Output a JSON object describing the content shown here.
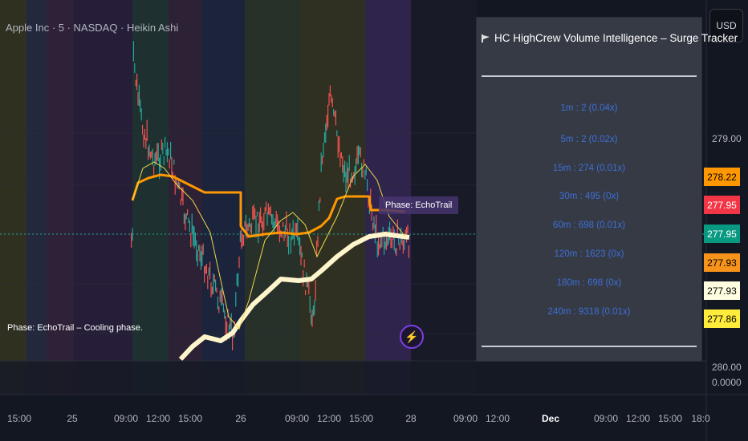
{
  "header": {
    "title": "Apple Inc · 5 · NASDAQ · Heikin Ashi",
    "currency_button": "USD"
  },
  "panel": {
    "title": "HC HighCrew Volume Intelligence – Surge Tracker",
    "icon": "bull-flag-icon",
    "rows": [
      "1m : 2  (0.04x)",
      "5m : 2  (0.02x)",
      "15m : 274  (0.01x)",
      "30m : 495  (0x)",
      "60m : 698  (0.01x)",
      "120m : 1623  (0x)",
      "180m : 698  (0x)",
      "240m : 9318  (0.01x)"
    ]
  },
  "labels": {
    "phase_tag": "Phase: EchoTrail",
    "phase_note": "Phase: EchoTrail – Cooling phase."
  },
  "price_axis": {
    "ticks": [
      "279.00",
      "280.00",
      "0.0000"
    ],
    "badges": [
      {
        "value": "278.22",
        "bg": "#ff9800",
        "fg": "#000000"
      },
      {
        "value": "277.95",
        "bg": "#f23645",
        "fg": "#ffffff"
      },
      {
        "value": "277.95",
        "bg": "#089981",
        "fg": "#ffffff"
      },
      {
        "value": "277.93",
        "bg": "#f7931a",
        "fg": "#000000"
      },
      {
        "value": "277.93",
        "bg": "#fffde0",
        "fg": "#000000"
      },
      {
        "value": "277.86",
        "bg": "#ffeb3b",
        "fg": "#000000"
      }
    ]
  },
  "time_axis": [
    "15:00",
    "25",
    "09:00",
    "12:00",
    "15:00",
    "26",
    "09:00",
    "12:00",
    "15:00",
    "28",
    "09:00",
    "12:00",
    "Dec",
    "09:00",
    "12:00",
    "15:00",
    "18:0"
  ],
  "colors": {
    "background": "#131722",
    "up": "#26a69a",
    "down": "#ef5350",
    "orange_line": "#ff9800",
    "thin_line": "#f0d84a",
    "thick_line": "#fff5cc",
    "panel": "#363a45",
    "row_text": "#3d6fd6"
  }
}
